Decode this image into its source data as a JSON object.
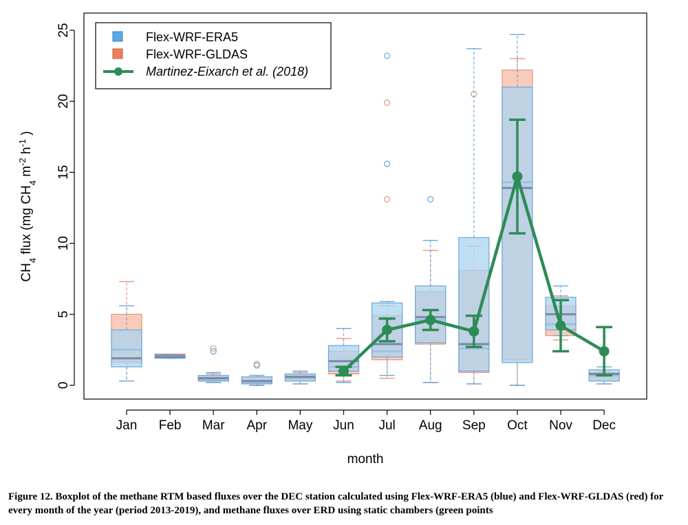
{
  "chart_data": {
    "type": "box",
    "xlabel": "month",
    "ylabel": "CH4  flux (mg CH4 m-2 h-1 )",
    "ylim": [
      -1,
      26
    ],
    "yticks": [
      0,
      5,
      10,
      15,
      20,
      25
    ],
    "categories": [
      "Jan",
      "Feb",
      "Mar",
      "Apr",
      "May",
      "Jun",
      "Jul",
      "Aug",
      "Sep",
      "Oct",
      "Nov",
      "Dec"
    ],
    "legend": {
      "position": "top-left",
      "entries": [
        {
          "label": "Flex-WRF-ERA5",
          "kind": "box",
          "color": "#56a9e8"
        },
        {
          "label": "Flex-WRF-GLDAS",
          "kind": "box",
          "color": "#ef7e5c"
        },
        {
          "label": "Martinez-Eixarch et al. (2018)",
          "kind": "line",
          "color": "#2e8b57"
        }
      ]
    },
    "series": [
      {
        "name": "Flex-WRF-ERA5",
        "fill": "#abd4f2",
        "stroke": "#6aa6dc",
        "boxes": [
          {
            "min": 0.3,
            "q1": 1.3,
            "median": 1.9,
            "q3": 3.9,
            "max": 5.6,
            "outliers": []
          },
          {
            "min": 1.9,
            "q1": 1.9,
            "median": 2.0,
            "q3": 2.1,
            "max": 2.1,
            "outliers": []
          },
          {
            "min": 0.2,
            "q1": 0.3,
            "median": 0.5,
            "q3": 0.7,
            "max": 0.9,
            "outliers": [
              2.4
            ]
          },
          {
            "min": 0.0,
            "q1": 0.1,
            "median": 0.3,
            "q3": 0.6,
            "max": 0.7,
            "outliers": [
              1.4
            ]
          },
          {
            "min": 0.1,
            "q1": 0.3,
            "median": 0.6,
            "q3": 0.8,
            "max": 1.0,
            "outliers": []
          },
          {
            "min": 0.2,
            "q1": 1.0,
            "median": 1.7,
            "q3": 2.8,
            "max": 4.0,
            "outliers": []
          },
          {
            "min": 0.7,
            "q1": 2.0,
            "median": 2.9,
            "q3": 5.8,
            "max": 5.9,
            "outliers": [
              15.6,
              23.2
            ]
          },
          {
            "min": 0.2,
            "q1": 3.0,
            "median": 4.8,
            "q3": 7.0,
            "max": 10.2,
            "outliers": [
              13.1
            ]
          },
          {
            "min": 0.1,
            "q1": 1.0,
            "median": 2.9,
            "q3": 10.4,
            "max": 23.7,
            "outliers": []
          },
          {
            "min": 0.0,
            "q1": 1.6,
            "median": 13.9,
            "q3": 21.0,
            "max": 24.7,
            "outliers": []
          },
          {
            "min": 3.5,
            "q1": 3.9,
            "median": 5.0,
            "q3": 6.2,
            "max": 7.0,
            "outliers": []
          },
          {
            "min": 0.1,
            "q1": 0.3,
            "median": 0.8,
            "q3": 1.1,
            "max": 1.3,
            "outliers": []
          }
        ]
      },
      {
        "name": "Flex-WRF-GLDAS",
        "fill": "#f7b9a3",
        "stroke": "#e0967f",
        "boxes": [
          {
            "min": 0.3,
            "q1": 1.6,
            "median": 2.5,
            "q3": 5.0,
            "max": 7.3,
            "outliers": []
          },
          {
            "min": 2.0,
            "q1": 2.0,
            "median": 2.1,
            "q3": 2.2,
            "max": 2.2,
            "outliers": []
          },
          {
            "min": 0.2,
            "q1": 0.3,
            "median": 0.4,
            "q3": 0.6,
            "max": 0.8,
            "outliers": [
              2.6
            ]
          },
          {
            "min": 0.0,
            "q1": 0.1,
            "median": 0.2,
            "q3": 0.6,
            "max": 0.7,
            "outliers": [
              1.5
            ]
          },
          {
            "min": 0.1,
            "q1": 0.3,
            "median": 0.5,
            "q3": 0.8,
            "max": 0.9,
            "outliers": []
          },
          {
            "min": 0.3,
            "q1": 0.8,
            "median": 1.3,
            "q3": 2.4,
            "max": 3.3,
            "outliers": []
          },
          {
            "min": 0.5,
            "q1": 1.8,
            "median": 2.4,
            "q3": 4.9,
            "max": 5.6,
            "outliers": [
              13.1,
              19.9
            ]
          },
          {
            "min": 0.2,
            "q1": 2.9,
            "median": 4.6,
            "q3": 6.6,
            "max": 9.5,
            "outliers": []
          },
          {
            "min": 0.1,
            "q1": 0.9,
            "median": 2.6,
            "q3": 8.1,
            "max": 9.8,
            "outliers": [
              20.5
            ]
          },
          {
            "min": 0.0,
            "q1": 1.8,
            "median": 14.3,
            "q3": 22.2,
            "max": 23.0,
            "outliers": []
          },
          {
            "min": 3.2,
            "q1": 3.5,
            "median": 4.3,
            "q3": 5.6,
            "max": 6.3,
            "outliers": []
          },
          {
            "min": 0.1,
            "q1": 0.3,
            "median": 0.7,
            "q3": 0.9,
            "max": 1.0,
            "outliers": []
          }
        ]
      },
      {
        "name": "Martinez-Eixarch et al. (2018)",
        "color": "#2e8b57",
        "months": [
          "Jun",
          "Jul",
          "Aug",
          "Sep",
          "Oct",
          "Nov",
          "Dec"
        ],
        "values": [
          1.0,
          3.9,
          4.6,
          3.8,
          14.7,
          4.2,
          2.4
        ],
        "err_low": [
          0.7,
          3.1,
          3.9,
          2.7,
          10.7,
          2.4,
          0.7
        ],
        "err_high": [
          1.3,
          4.7,
          5.3,
          4.9,
          18.7,
          6.0,
          4.1
        ]
      }
    ]
  },
  "labels": {
    "ylabel_parts": {
      "ch": "CH",
      "ch_sub": "4",
      "flux_open": "  flux (mg CH",
      "unit_sub": "4",
      "m": " m",
      "m_sup": "-2",
      "h": " h",
      "h_sup": "-1",
      "close": " )"
    }
  },
  "caption": "Figure 12. Boxplot of the methane RTM based fluxes over the DEC station calculated using Flex-WRF-ERA5 (blue) and Flex-WRF-GLDAS (red) for every month of the year (period 2013-2019), and methane fluxes over ERD using static chambers (green points"
}
